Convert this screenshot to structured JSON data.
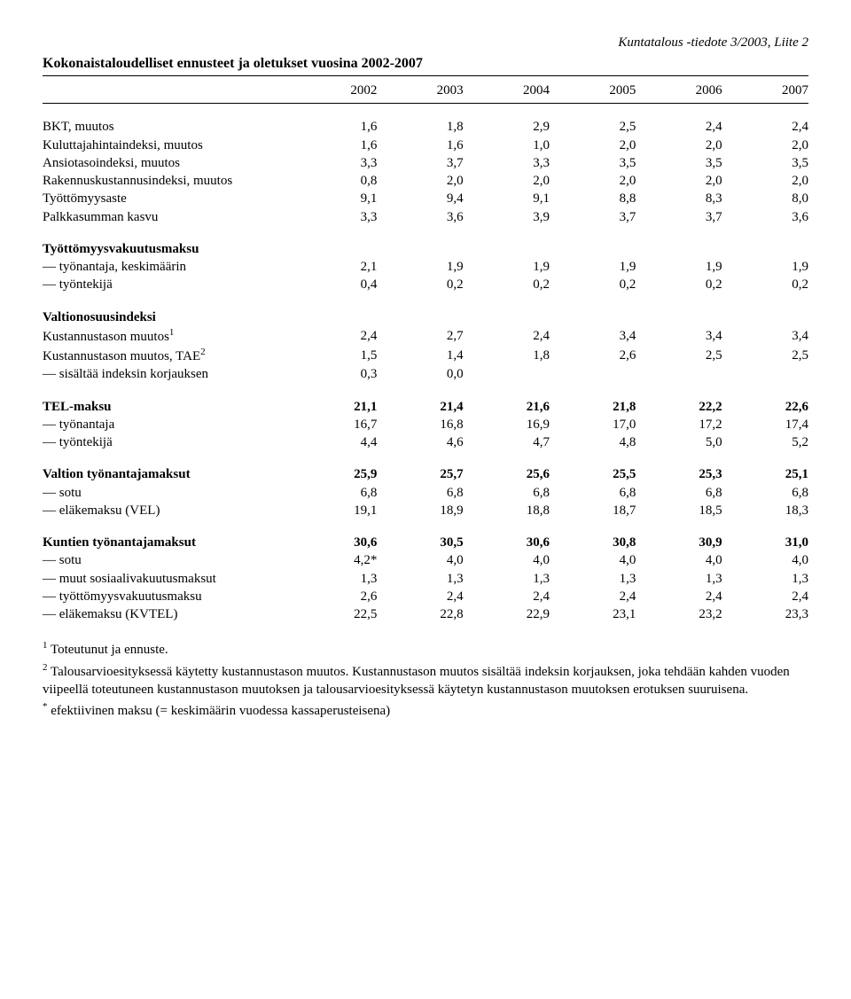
{
  "header": {
    "right": "Kuntatalous -tiedote 3/2003, Liite 2",
    "title": "Kokonaistaloudelliset ennusteet ja oletukset vuosina 2002-2007"
  },
  "years": [
    "2002",
    "2003",
    "2004",
    "2005",
    "2006",
    "2007"
  ],
  "rows": [
    {
      "label": "BKT, muutos",
      "vals": [
        "1,6",
        "1,8",
        "2,9",
        "2,5",
        "2,4",
        "2,4"
      ]
    },
    {
      "label": "Kuluttajahintaindeksi, muutos",
      "vals": [
        "1,6",
        "1,6",
        "1,0",
        "2,0",
        "2,0",
        "2,0"
      ]
    },
    {
      "label": "Ansiotasoindeksi, muutos",
      "vals": [
        "3,3",
        "3,7",
        "3,3",
        "3,5",
        "3,5",
        "3,5"
      ]
    },
    {
      "label": "Rakennuskustannusindeksi, muutos",
      "vals": [
        "0,8",
        "2,0",
        "2,0",
        "2,0",
        "2,0",
        "2,0"
      ]
    },
    {
      "label": "Työttömyysaste",
      "vals": [
        "9,1",
        "9,4",
        "9,1",
        "8,8",
        "8,3",
        "8,0"
      ]
    },
    {
      "label": "Palkkasumman kasvu",
      "vals": [
        "3,3",
        "3,6",
        "3,9",
        "3,7",
        "3,7",
        "3,6"
      ]
    }
  ],
  "unemp": {
    "head": "Työttömyysvakuutusmaksu",
    "rows": [
      {
        "label": "— työnantaja, keskimäärin",
        "vals": [
          "2,1",
          "1,9",
          "1,9",
          "1,9",
          "1,9",
          "1,9"
        ]
      },
      {
        "label": "— työntekijä",
        "vals": [
          "0,4",
          "0,2",
          "0,2",
          "0,2",
          "0,2",
          "0,2"
        ]
      }
    ]
  },
  "valtio_idx": {
    "head": "Valtionosuusindeksi",
    "rows": [
      {
        "label_html": "Kustannustason muutos<sup>1</sup>",
        "vals": [
          "2,4",
          "2,7",
          "2,4",
          "3,4",
          "3,4",
          "3,4"
        ]
      },
      {
        "label_html": "Kustannustason muutos, TAE<sup>2</sup>",
        "vals": [
          "1,5",
          "1,4",
          "1,8",
          "2,6",
          "2,5",
          "2,5"
        ]
      },
      {
        "label": "— sisältää indeksin korjauksen",
        "vals": [
          "0,3",
          "0,0",
          "",
          "",
          "",
          ""
        ]
      }
    ]
  },
  "tel": {
    "rows": [
      {
        "label": "TEL-maksu",
        "bold": true,
        "vals": [
          "21,1",
          "21,4",
          "21,6",
          "21,8",
          "22,2",
          "22,6"
        ]
      },
      {
        "label": "— työnantaja",
        "vals": [
          "16,7",
          "16,8",
          "16,9",
          "17,0",
          "17,2",
          "17,4"
        ]
      },
      {
        "label": "— työntekijä",
        "vals": [
          "4,4",
          "4,6",
          "4,7",
          "4,8",
          "5,0",
          "5,2"
        ]
      }
    ]
  },
  "valtion_maksut": {
    "rows": [
      {
        "label": "Valtion työnantajamaksut",
        "bold": true,
        "vals": [
          "25,9",
          "25,7",
          "25,6",
          "25,5",
          "25,3",
          "25,1"
        ]
      },
      {
        "label": "— sotu",
        "vals": [
          "6,8",
          "6,8",
          "6,8",
          "6,8",
          "6,8",
          "6,8"
        ]
      },
      {
        "label": "— eläkemaksu (VEL)",
        "vals": [
          "19,1",
          "18,9",
          "18,8",
          "18,7",
          "18,5",
          "18,3"
        ]
      }
    ]
  },
  "kuntien_maksut": {
    "rows": [
      {
        "label": "Kuntien työnantajamaksut",
        "bold": true,
        "vals": [
          "30,6",
          "30,5",
          "30,6",
          "30,8",
          "30,9",
          "31,0"
        ]
      },
      {
        "label": "— sotu",
        "vals": [
          "4,2*",
          "4,0",
          "4,0",
          "4,0",
          "4,0",
          "4,0"
        ]
      },
      {
        "label": "— muut sosiaalivakuutusmaksut",
        "vals": [
          "1,3",
          "1,3",
          "1,3",
          "1,3",
          "1,3",
          "1,3"
        ]
      },
      {
        "label": "— työttömyysvakuutusmaksu",
        "vals": [
          "2,6",
          "2,4",
          "2,4",
          "2,4",
          "2,4",
          "2,4"
        ]
      },
      {
        "label": "— eläkemaksu (KVTEL)",
        "vals": [
          "22,5",
          "22,8",
          "22,9",
          "23,1",
          "23,2",
          "23,3"
        ]
      }
    ]
  },
  "footnotes": {
    "f1": "<sup>1</sup> Toteutunut ja ennuste.",
    "f2": "<sup>2</sup> Talousarvioesityksessä käytetty kustannustason muutos. Kustannustason muutos sisältää indeksin korjauksen, joka tehdään kahden vuoden viipeellä toteutuneen kustannustason muutoksen ja talousarvioesityksessä käytetyn kustannustason muutoksen erotuksen suuruisena.",
    "f3": "<sup>*</sup> efektiivinen maksu (= keskimäärin vuodessa kassaperusteisena)"
  }
}
